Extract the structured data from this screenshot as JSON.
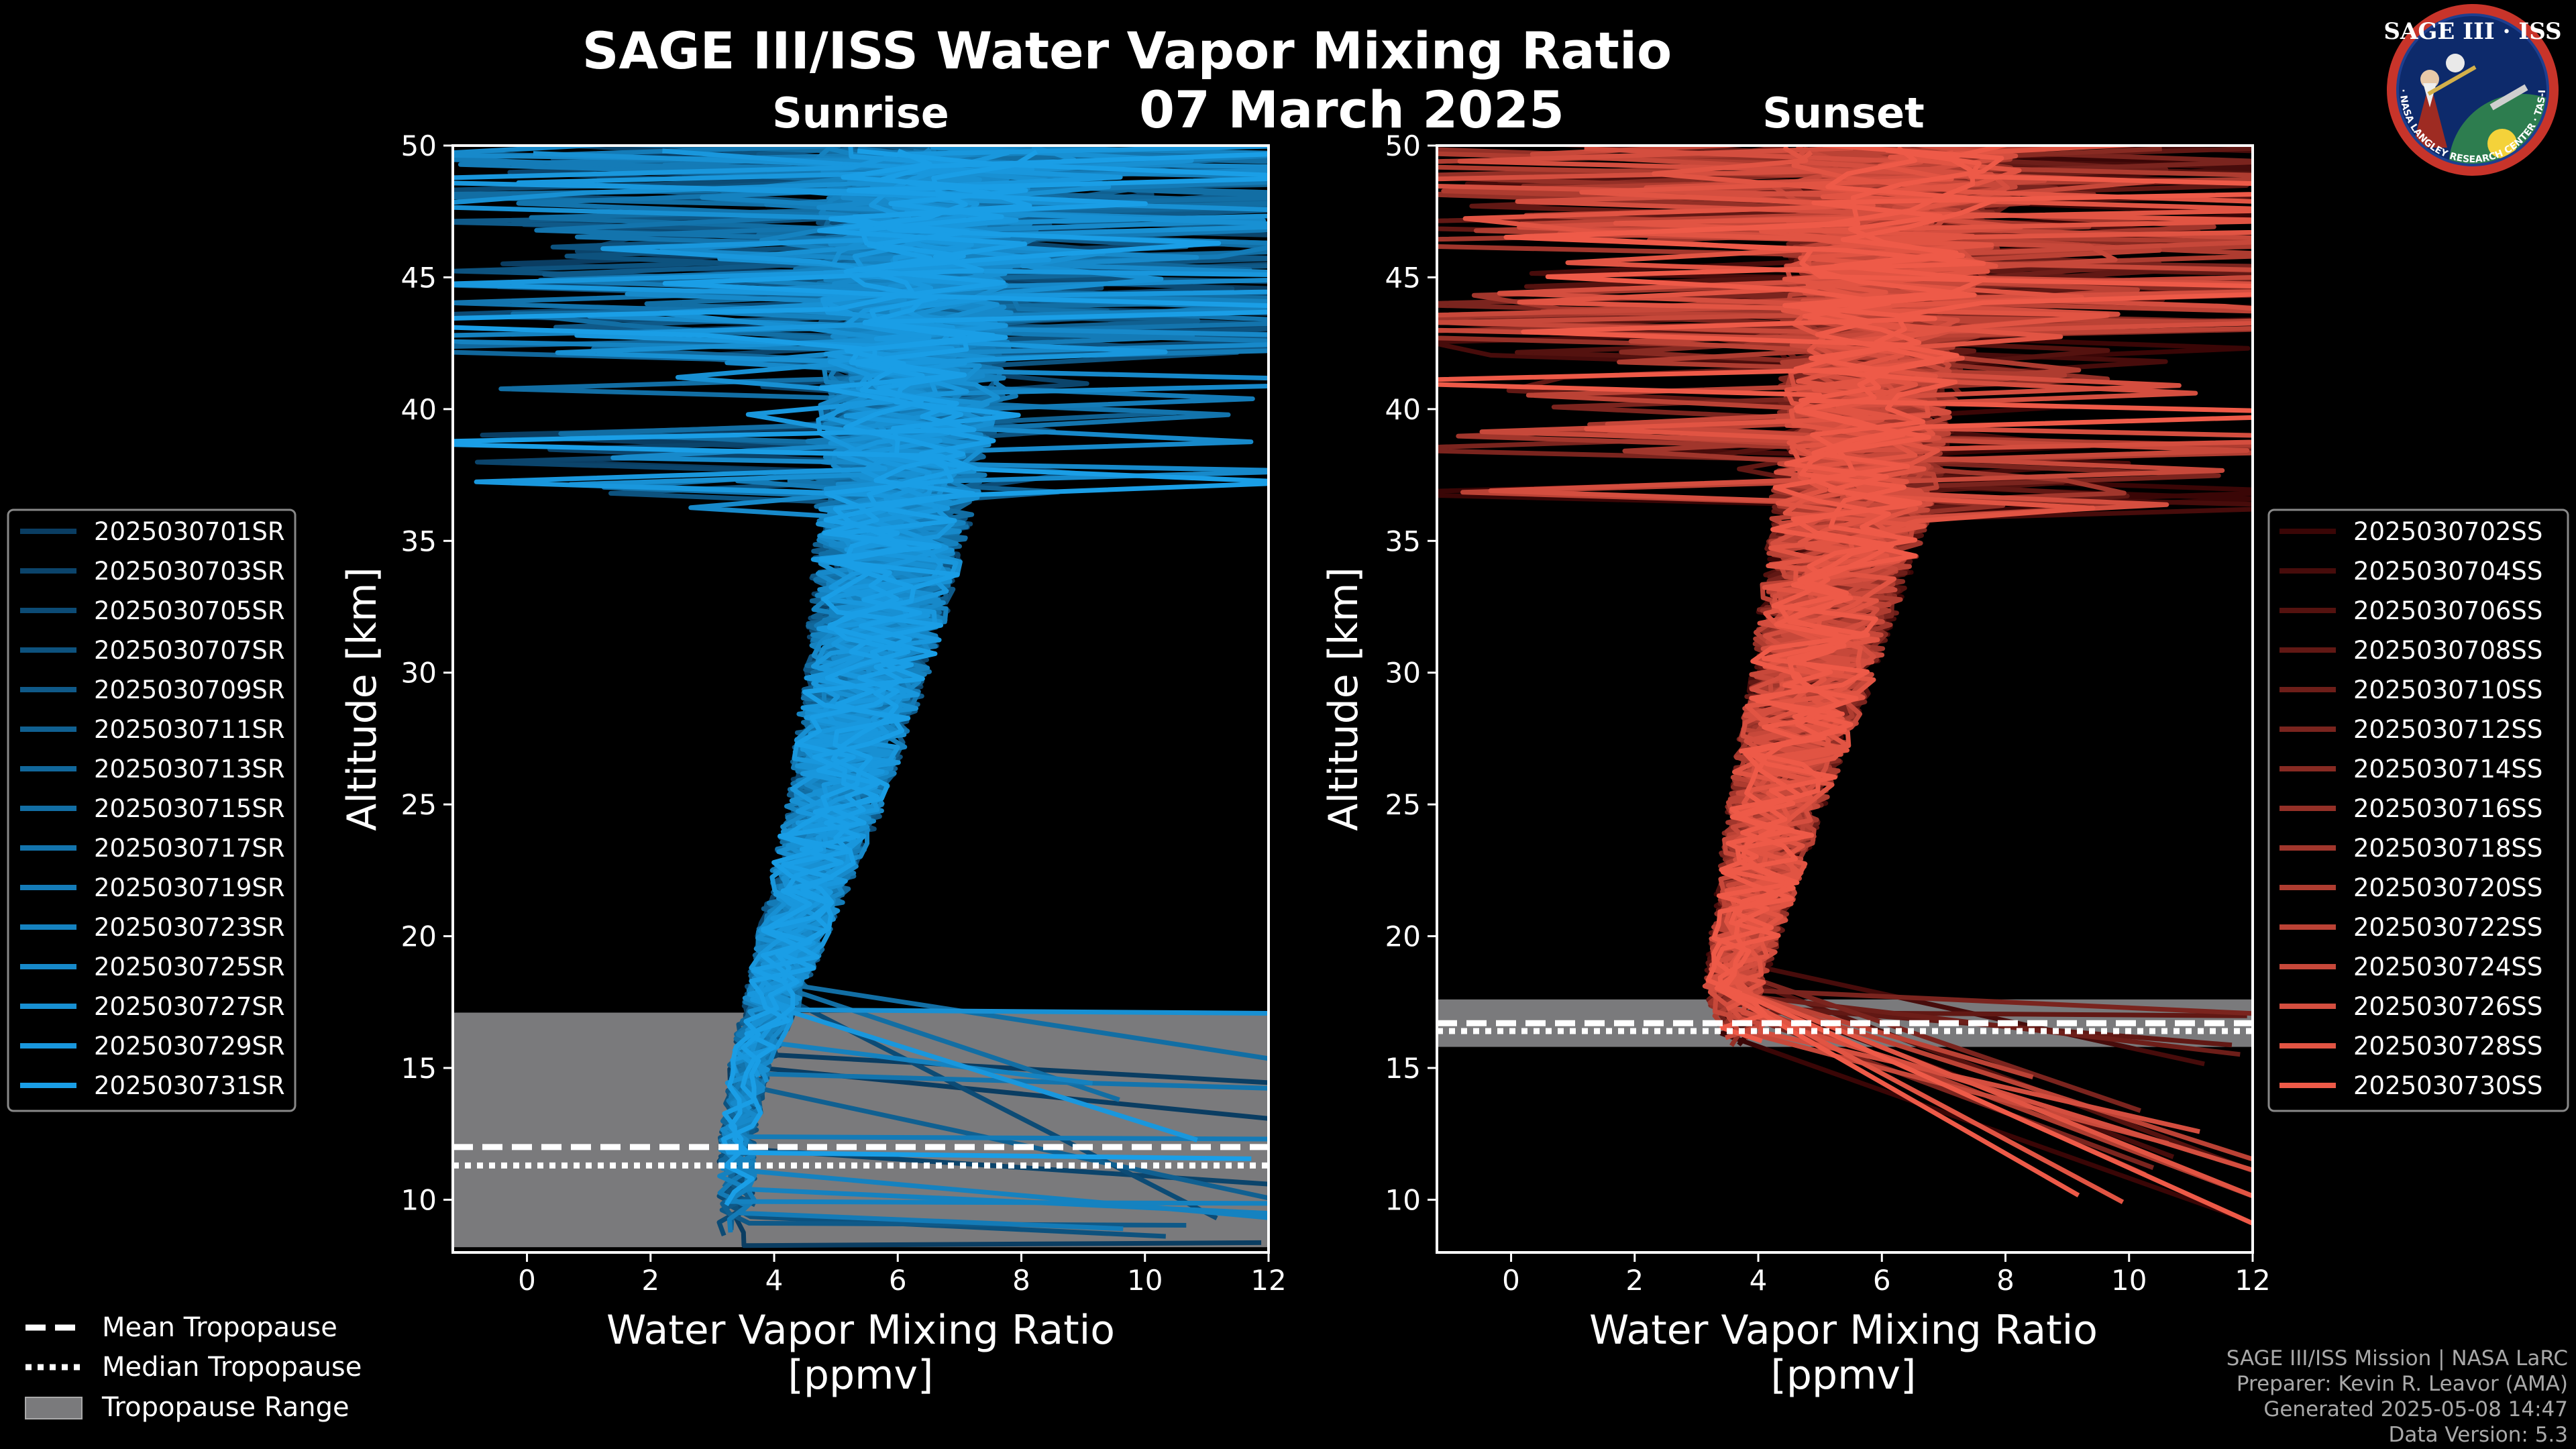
{
  "colors": {
    "sunrise_base": "#0a3d62",
    "sunrise_light": "#1a9ee6",
    "sunset_base": "#3a0606",
    "sunset_light": "#ee5a48",
    "tropopause_range": "#7a7a7c",
    "background": "#000000"
  },
  "chart_data": {
    "type": "line",
    "title": "SAGE III/ISS Water Vapor Mixing Ratio",
    "date": "07 March 2025",
    "logo": {
      "text": "SAGE III · ISS",
      "ring_text": "BALL · NASA LANGLEY RESEARCH CENTER · TAS-I · ESA"
    },
    "x_ticks": [
      "0",
      "2",
      "4",
      "6",
      "8",
      "10",
      "12"
    ],
    "y_ticks": [
      "10",
      "15",
      "20",
      "25",
      "30",
      "35",
      "40",
      "45",
      "50"
    ],
    "panels": [
      {
        "id": "sunrise",
        "subtitle": "Sunrise",
        "xlabel_line1": "Water Vapor Mixing Ratio",
        "xlabel_line2": "[ppmv]",
        "ylabel": "Altitude [km]",
        "xlim": [
          -1.2,
          12
        ],
        "ylim": [
          8,
          50
        ],
        "tropopause_range": [
          8.2,
          17.1
        ],
        "mean_tropopause": 12.0,
        "median_tropopause": 11.3,
        "series": [
          "2025030701SR",
          "2025030703SR",
          "2025030705SR",
          "2025030707SR",
          "2025030709SR",
          "2025030711SR",
          "2025030713SR",
          "2025030715SR",
          "2025030717SR",
          "2025030719SR",
          "2025030723SR",
          "2025030725SR",
          "2025030727SR",
          "2025030729SR",
          "2025030731SR"
        ],
        "profile_mean": [
          {
            "alt": 12,
            "wv": 3.4
          },
          {
            "alt": 15,
            "wv": 3.6
          },
          {
            "alt": 17,
            "wv": 3.9
          },
          {
            "alt": 20,
            "wv": 4.3
          },
          {
            "alt": 25,
            "wv": 5.0
          },
          {
            "alt": 30,
            "wv": 5.5
          },
          {
            "alt": 35,
            "wv": 5.9
          },
          {
            "alt": 40,
            "wv": 6.2
          },
          {
            "alt": 45,
            "wv": 6.4
          },
          {
            "alt": 50,
            "wv": 6.6
          }
        ]
      },
      {
        "id": "sunset",
        "subtitle": "Sunset",
        "xlabel_line1": "Water Vapor Mixing Ratio",
        "xlabel_line2": "[ppmv]",
        "ylabel": "Altitude [km]",
        "xlim": [
          -1.2,
          12
        ],
        "ylim": [
          8,
          50
        ],
        "tropopause_range": [
          15.8,
          17.6
        ],
        "mean_tropopause": 16.7,
        "median_tropopause": 16.4,
        "series": [
          "2025030702SS",
          "2025030704SS",
          "2025030706SS",
          "2025030708SS",
          "2025030710SS",
          "2025030712SS",
          "2025030714SS",
          "2025030716SS",
          "2025030718SS",
          "2025030720SS",
          "2025030722SS",
          "2025030724SS",
          "2025030726SS",
          "2025030728SS",
          "2025030730SS"
        ],
        "profile_mean": [
          {
            "alt": 13,
            "wv": 4.5
          },
          {
            "alt": 16,
            "wv": 3.8
          },
          {
            "alt": 18,
            "wv": 3.6
          },
          {
            "alt": 20,
            "wv": 3.8
          },
          {
            "alt": 25,
            "wv": 4.3
          },
          {
            "alt": 30,
            "wv": 4.9
          },
          {
            "alt": 35,
            "wv": 5.4
          },
          {
            "alt": 40,
            "wv": 5.8
          },
          {
            "alt": 45,
            "wv": 6.1
          },
          {
            "alt": 50,
            "wv": 6.4
          }
        ]
      }
    ],
    "bottom_legend": [
      {
        "label": "Mean Tropopause",
        "style": "dashed"
      },
      {
        "label": "Median Tropopause",
        "style": "dotted"
      },
      {
        "label": "Tropopause Range",
        "style": "patch"
      }
    ],
    "credits": [
      "SAGE III/ISS Mission | NASA LaRC",
      "Preparer: Kevin R. Leavor (AMA)",
      "Generated 2025-05-08 14:47",
      "Data Version: 5.3"
    ]
  }
}
